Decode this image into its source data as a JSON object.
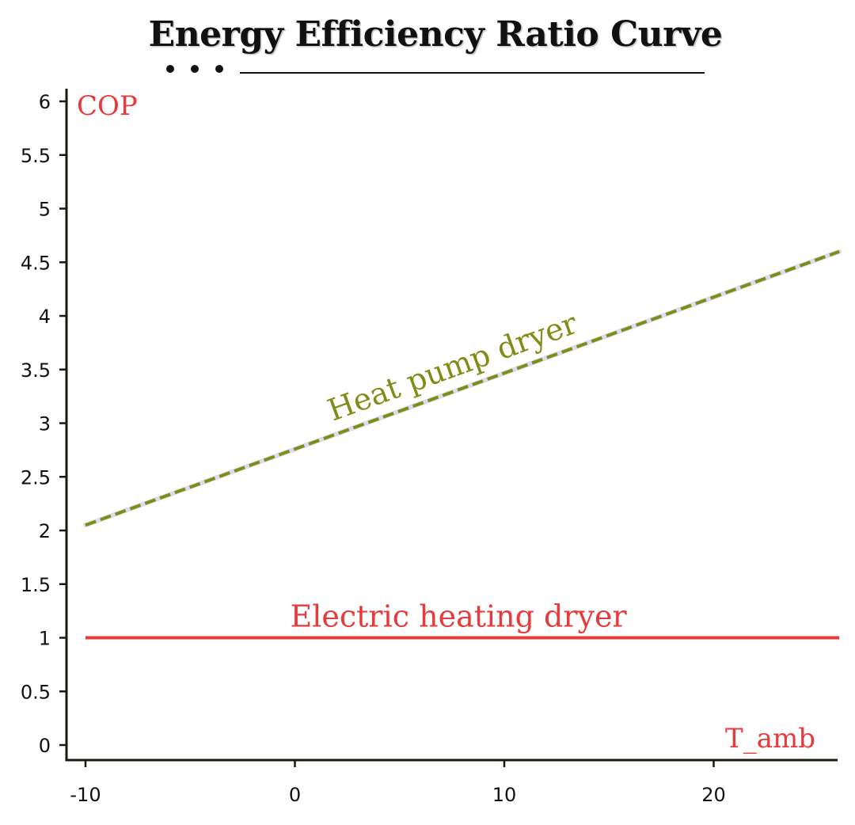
{
  "chart_data": {
    "type": "line",
    "title": "Energy Efficiency Ratio Curve",
    "xlabel": "T_amb",
    "ylabel": "COP",
    "xlim": [
      -10.5,
      26
    ],
    "ylim": [
      -0.15,
      6.1
    ],
    "x_ticks": [
      -10,
      0,
      10,
      20
    ],
    "y_ticks": [
      0,
      0.5,
      1,
      1.5,
      2,
      2.5,
      3,
      3.5,
      4,
      4.5,
      5,
      5.5,
      6
    ],
    "grid": false,
    "series": [
      {
        "name": "Heat pump dryer",
        "color": "#7a8f14",
        "style": "dashed",
        "x": [
          -10,
          26
        ],
        "y": [
          2.05,
          4.6
        ]
      },
      {
        "name": "Electric heating dryer",
        "color": "#e8393b",
        "style": "solid",
        "x": [
          -10,
          26
        ],
        "y": [
          1,
          1
        ]
      }
    ],
    "colors": {
      "axis": "#1a1a0a",
      "ylabel": "#e8393b",
      "xlabel": "#e8393b"
    }
  }
}
